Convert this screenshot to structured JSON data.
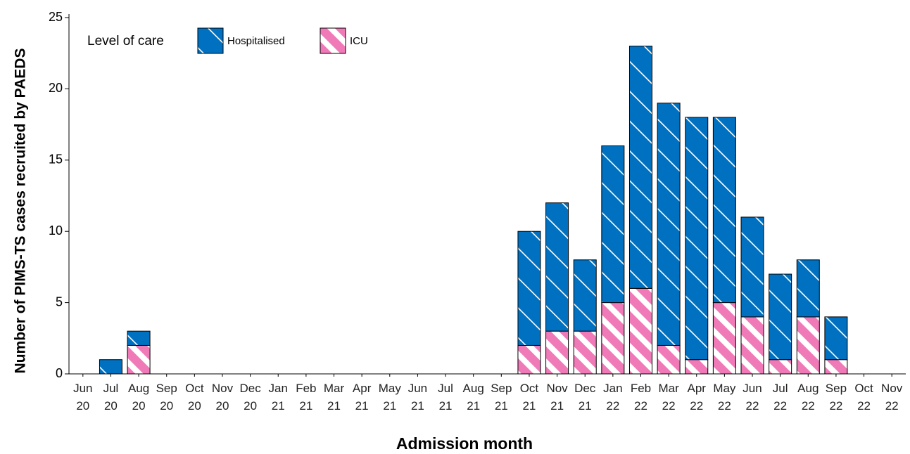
{
  "chart_data": {
    "type": "stacked-bar",
    "y_label": "Number of PIMS-TS cases recruited by PAEDS",
    "x_label": "Admission month",
    "legend_title": "Level of care",
    "categories": [
      "Jun 20",
      "Jul 20",
      "Aug 20",
      "Sep 20",
      "Oct 20",
      "Nov 20",
      "Dec 20",
      "Jan 21",
      "Feb 21",
      "Mar 21",
      "Apr 21",
      "May 21",
      "Jun 21",
      "Jul 21",
      "Aug 21",
      "Sep 21",
      "Oct 21",
      "Nov 21",
      "Dec 21",
      "Jan 22",
      "Feb 22",
      "Mar 22",
      "Apr 22",
      "May 22",
      "Jun 22",
      "Jul 22",
      "Aug 22",
      "Sep 22",
      "Oct 22",
      "Nov 22"
    ],
    "series": [
      {
        "name": "Hospitalised",
        "color": "#0070c0",
        "values": [
          0,
          1,
          1,
          0,
          0,
          0,
          0,
          0,
          0,
          0,
          0,
          0,
          0,
          0,
          0,
          0,
          8,
          9,
          5,
          11,
          17,
          17,
          17,
          13,
          7,
          6,
          4,
          3,
          0,
          0
        ]
      },
      {
        "name": "ICU",
        "color": "#f07ab8",
        "values": [
          0,
          0,
          2,
          0,
          0,
          0,
          0,
          0,
          0,
          0,
          0,
          0,
          0,
          0,
          0,
          0,
          2,
          3,
          3,
          5,
          6,
          2,
          1,
          5,
          4,
          1,
          4,
          1,
          0,
          0
        ]
      }
    ],
    "ylim": [
      0,
      25
    ],
    "yticks": [
      0,
      5,
      10,
      15,
      20,
      25
    ],
    "grid": false
  }
}
